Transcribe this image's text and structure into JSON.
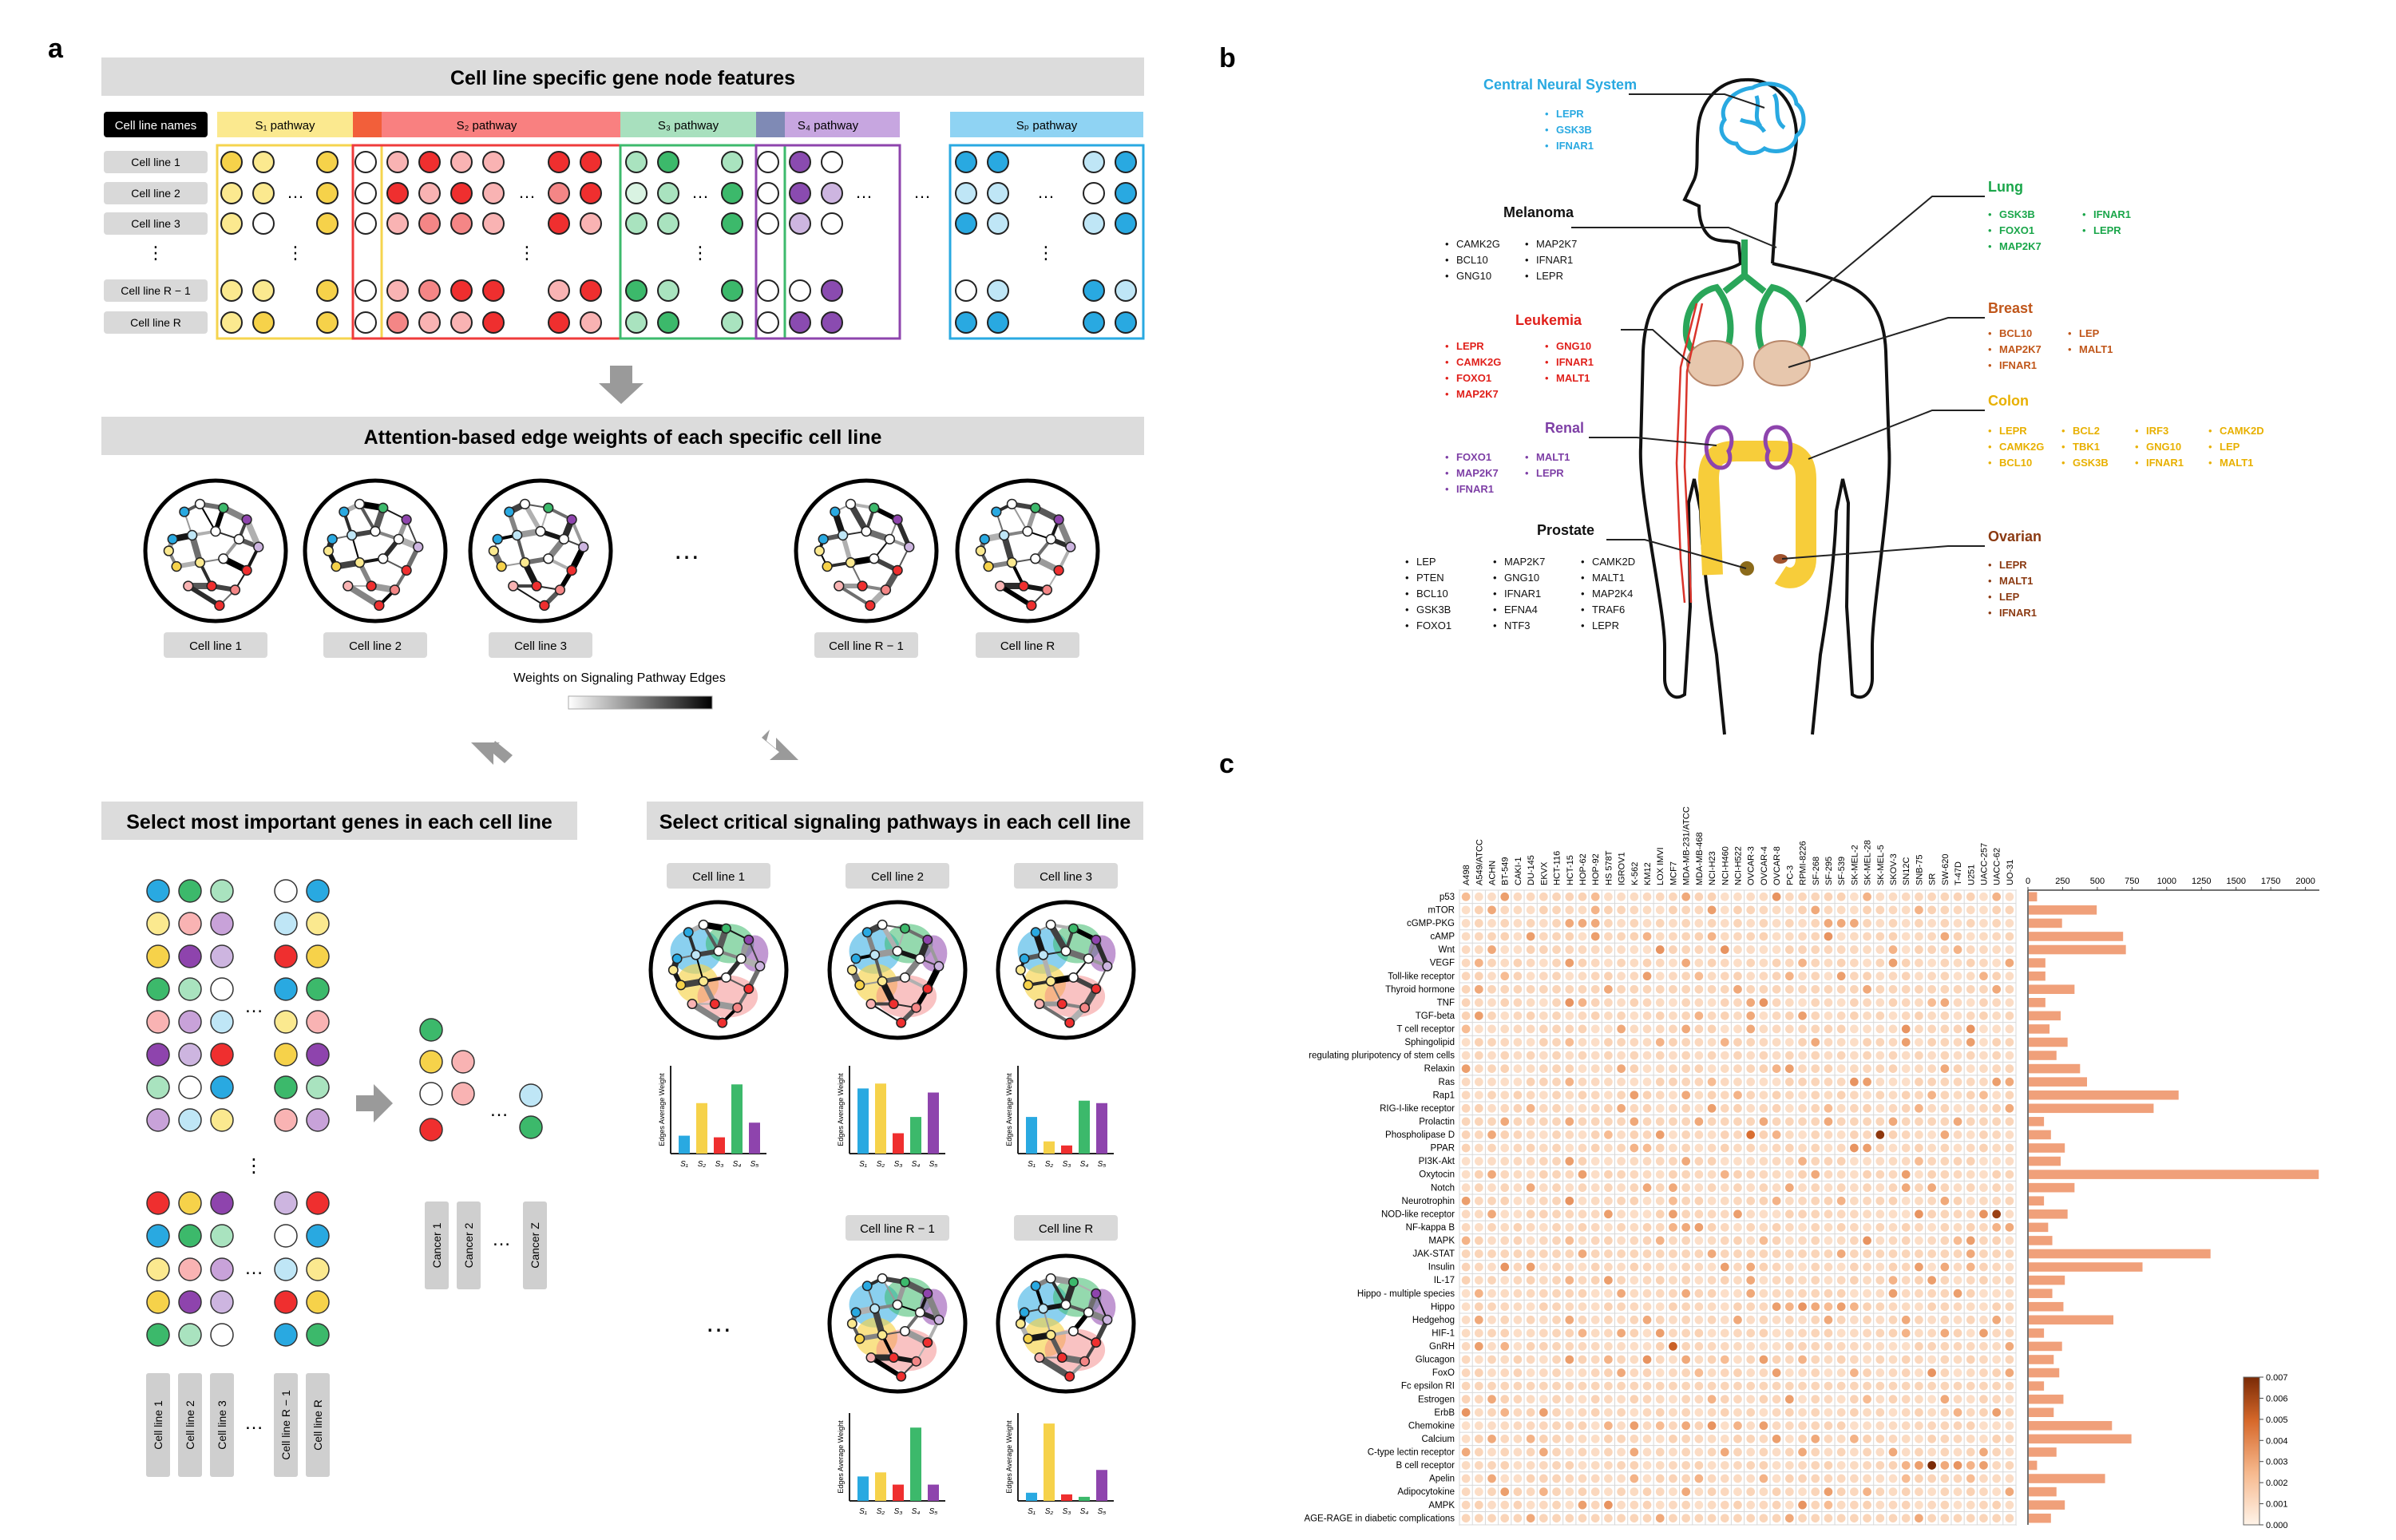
{
  "panel_letters": {
    "a": "a",
    "b": "b",
    "c": "c"
  },
  "a": {
    "header1": "Cell line specific gene node features",
    "names_header": "Cell line names",
    "rows": [
      "Cell line 1",
      "Cell line 2",
      "Cell line 3",
      "⋮",
      "Cell line R − 1",
      "Cell line R"
    ],
    "pathways": [
      {
        "label": "S₁ pathway",
        "color": "#f5d44e"
      },
      {
        "label": "S₂ pathway",
        "color": "#ef3b3b"
      },
      {
        "label": "S₃ pathway",
        "color": "#3dba6c"
      },
      {
        "label": "S₄ pathway",
        "color": "#8e44ad"
      },
      {
        "label": "Sₚ pathway",
        "color": "#29a9e1"
      }
    ],
    "header2": "Attention-based edge weights of each specific cell line",
    "graph_labels": [
      "Cell line 1",
      "Cell line 2",
      "Cell line 3",
      "Cell line R − 1",
      "Cell line R"
    ],
    "weights_label": "Weights on Signaling Pathway Edges",
    "header3": "Select most important genes in each cell line",
    "header4": "Select critical signaling pathways in each cell line",
    "col_labels": [
      "Cell line 1",
      "Cell line 2",
      "Cell line 3",
      "Cell line R − 1",
      "Cell line R"
    ],
    "cancer_labels": [
      "Cancer 1",
      "Cancer 2",
      "Cancer Z"
    ],
    "crit_labels": [
      "Cell line 1",
      "Cell line 2",
      "Cell line 3",
      "Cell line R − 1",
      "Cell line R"
    ],
    "bar_ylabel": "Edges Average Weight",
    "bar_xticks": [
      "S₁",
      "S₂",
      "S₃",
      "S₄",
      "S₅"
    ],
    "ellipsis": "…",
    "vdots": "⋮",
    "mini_bars": [
      [
        0.22,
        0.62,
        0.2,
        0.85,
        0.38
      ],
      [
        0.8,
        0.86,
        0.25,
        0.45,
        0.75
      ],
      [
        0.45,
        0.15,
        0.1,
        0.65,
        0.62
      ],
      [
        0.3,
        0.35,
        0.2,
        0.9,
        0.2
      ],
      [
        0.1,
        0.95,
        0.08,
        0.05,
        0.38
      ]
    ]
  },
  "b": {
    "groups": [
      {
        "title": "Central Neural System",
        "color": "#29a9e1",
        "genes": [
          "LEPR",
          "GSK3B",
          "IFNAR1"
        ]
      },
      {
        "title": "Melanoma",
        "color": "#111111",
        "genes": [
          "CAMK2G",
          "BCL10",
          "GNG10",
          "MAP2K7",
          "IFNAR1",
          "LEPR"
        ]
      },
      {
        "title": "Leukemia",
        "color": "#e0201b",
        "genes": [
          "LEPR",
          "CAMK2G",
          "FOXO1",
          "MAP2K7",
          "GNG10",
          "IFNAR1",
          "MALT1"
        ]
      },
      {
        "title": "Renal",
        "color": "#7e3fa6",
        "genes": [
          "FOXO1",
          "MAP2K7",
          "IFNAR1",
          "MALT1",
          "LEPR"
        ]
      },
      {
        "title": "Prostate",
        "color": "#111111",
        "genes": [
          "LEP",
          "PTEN",
          "BCL10",
          "GSK3B",
          "FOXO1",
          "MAP2K7",
          "GNG10",
          "IFNAR1",
          "EFNA4",
          "NTF3",
          "CAMK2D",
          "MALT1",
          "MAP2K4",
          "TRAF6",
          "LEPR"
        ]
      },
      {
        "title": "Lung",
        "color": "#1aa64a",
        "genes": [
          "GSK3B",
          "FOXO1",
          "MAP2K7",
          "IFNAR1",
          "LEPR"
        ]
      },
      {
        "title": "Breast",
        "color": "#c0561a",
        "genes": [
          "BCL10",
          "MAP2K7",
          "IFNAR1",
          "LEP",
          "MALT1"
        ]
      },
      {
        "title": "Colon",
        "color": "#e8b000",
        "genes": [
          "LEPR",
          "CAMK2G",
          "BCL10",
          "BCL2",
          "TBK1",
          "GSK3B",
          "IRF3",
          "GNG10",
          "IFNAR1",
          "CAMK2D",
          "LEP",
          "MALT1"
        ]
      },
      {
        "title": "Ovarian",
        "color": "#8b3a12",
        "genes": [
          "LEPR",
          "MALT1",
          "LEP",
          "IFNAR1"
        ]
      }
    ]
  },
  "c": {
    "chart_data": {
      "type": "heatmap",
      "columns": [
        "A498",
        "A549/ATCC",
        "ACHN",
        "BT-549",
        "CAKI-1",
        "DU-145",
        "EKVX",
        "HCT-116",
        "HCT-15",
        "HOP-62",
        "HOP-92",
        "HS 578T",
        "IGROV1",
        "K-562",
        "KM12",
        "LOX IMVI",
        "MCF7",
        "MDA-MB-231/ATCC",
        "MDA-MB-468",
        "NCI-H23",
        "NCI-H460",
        "NCI-H522",
        "OVCAR-3",
        "OVCAR-4",
        "OVCAR-8",
        "PC-3",
        "RPMI-8226",
        "SF-268",
        "SF-295",
        "SF-539",
        "SK-MEL-2",
        "SK-MEL-28",
        "SK-MEL-5",
        "SKOV-3",
        "SN12C",
        "SNB-75",
        "SR",
        "SW-620",
        "T-47D",
        "U251",
        "UACC-257",
        "UACC-62",
        "UO-31"
      ],
      "rows": [
        "p53",
        "mTOR",
        "cGMP-PKG",
        "cAMP",
        "Wnt",
        "VEGF",
        "Toll-like receptor",
        "Thyroid hormone",
        "TNF",
        "TGF-beta",
        "T cell receptor",
        "Sphingolipid",
        "regulating pluripotency of stem cells",
        "Relaxin",
        "Ras",
        "Rap1",
        "RIG-I-like receptor",
        "Prolactin",
        "Phospholipase D",
        "PPAR",
        "PI3K-Akt",
        "Oxytocin",
        "Notch",
        "Neurotrophin",
        "NOD-like receptor",
        "NF-kappa B",
        "MAPK",
        "JAK-STAT",
        "Insulin",
        "IL-17",
        "Hippo - multiple species",
        "Hippo",
        "Hedgehog",
        "HIF-1",
        "GnRH",
        "Glucagon",
        "FoxO",
        "Fc epsilon RI",
        "Estrogen",
        "ErbB",
        "Chemokine",
        "Calcium",
        "C-type lectin receptor",
        "B cell receptor",
        "Apelin",
        "Adipocytokine",
        "AMPK",
        "AGE-RAGE  in diabetic complications"
      ],
      "bar_values": [
        60,
        490,
        240,
        680,
        700,
        120,
        120,
        330,
        120,
        230,
        150,
        280,
        200,
        370,
        420,
        1080,
        900,
        110,
        160,
        260,
        230,
        2090,
        330,
        110,
        280,
        140,
        170,
        1310,
        820,
        260,
        170,
        250,
        610,
        110,
        240,
        180,
        220,
        110,
        250,
        180,
        600,
        740,
        200,
        60,
        550,
        200,
        260,
        160
      ],
      "bar_axis_ticks": [
        "0",
        "250",
        "500",
        "750",
        "1000",
        "1250",
        "1500",
        "1750",
        "2000"
      ],
      "bar_xlim": [
        0,
        2100
      ],
      "colorbar_ticks": [
        "0.000",
        "0.001",
        "0.002",
        "0.003",
        "0.004",
        "0.005",
        "0.006",
        "0.007"
      ],
      "colorbar_range": [
        0,
        0.007
      ],
      "dark_cells": [
        {
          "row": "Phospholipase D",
          "col": "SK-MEL-5",
          "value": 0.0065
        },
        {
          "row": "NOD-like receptor",
          "col": "UACC-62",
          "value": 0.0062
        },
        {
          "row": "B cell receptor",
          "col": "SR",
          "value": 0.007
        },
        {
          "row": "GnRH",
          "col": "MCF7",
          "value": 0.005
        },
        {
          "row": "Phospholipase D",
          "col": "OVCAR-3",
          "value": 0.0045
        }
      ]
    }
  }
}
